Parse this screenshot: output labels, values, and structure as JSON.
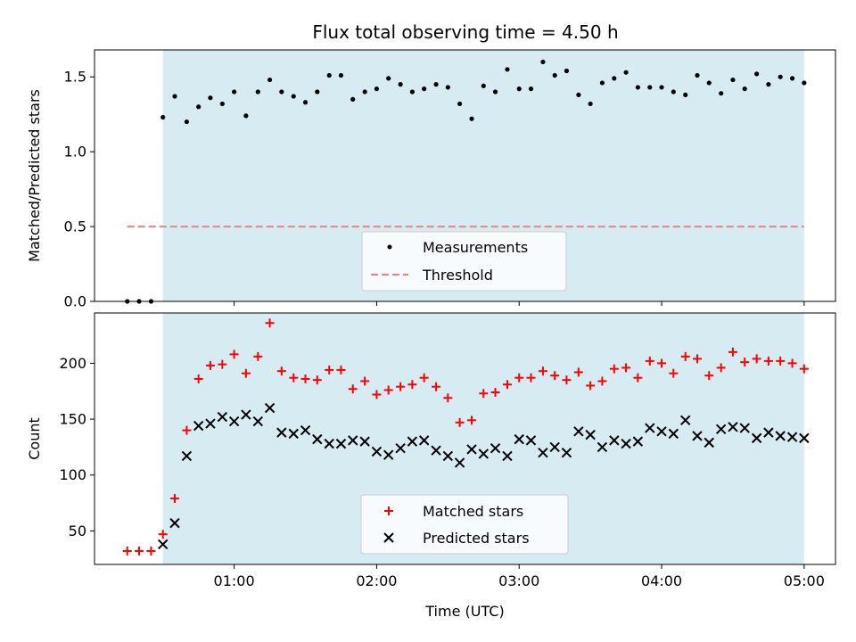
{
  "chart_data": {
    "title": "Flux total observing time = 4.50 h",
    "xlabel": "Time (UTC)",
    "x_unit": "hours (UTC)",
    "xlim": [
      0.02,
      5.22
    ],
    "xticks": [
      {
        "value": 1,
        "label": "01:00"
      },
      {
        "value": 2,
        "label": "02:00"
      },
      {
        "value": 3,
        "label": "03:00"
      },
      {
        "value": 4,
        "label": "04:00"
      },
      {
        "value": 5,
        "label": "05:00"
      }
    ],
    "observing_span": [
      0.5,
      5.0
    ],
    "colors": {
      "span": "#add8e6",
      "measurements": "#000000",
      "threshold": "#f08080",
      "matched": "#ff0000",
      "predicted": "#000000"
    },
    "panels": [
      {
        "type": "scatter",
        "ylabel": "Matched/Predicted stars",
        "ylim": [
          0.0,
          1.68
        ],
        "yticks": [
          {
            "value": 0.0,
            "label": "0.0"
          },
          {
            "value": 0.5,
            "label": "0.5"
          },
          {
            "value": 1.0,
            "label": "1.0"
          },
          {
            "value": 1.5,
            "label": "1.5"
          }
        ],
        "legend_position": "lower-center",
        "series": [
          {
            "name": "Measurements",
            "marker": "dot",
            "x": [
              0.25,
              0.333,
              0.417,
              0.5,
              0.583,
              0.667,
              0.75,
              0.833,
              0.917,
              1.0,
              1.083,
              1.167,
              1.25,
              1.333,
              1.417,
              1.5,
              1.583,
              1.667,
              1.75,
              1.833,
              1.917,
              2.0,
              2.083,
              2.167,
              2.25,
              2.333,
              2.417,
              2.5,
              2.583,
              2.667,
              2.75,
              2.833,
              2.917,
              3.0,
              3.083,
              3.167,
              3.25,
              3.333,
              3.417,
              3.5,
              3.583,
              3.667,
              3.75,
              3.833,
              3.917,
              4.0,
              4.083,
              4.167,
              4.25,
              4.333,
              4.417,
              4.5,
              4.583,
              4.667,
              4.75,
              4.833,
              4.917,
              5.0
            ],
            "y": [
              0.0,
              0.0,
              0.0,
              1.23,
              1.37,
              1.2,
              1.3,
              1.36,
              1.32,
              1.4,
              1.24,
              1.4,
              1.48,
              1.4,
              1.37,
              1.33,
              1.4,
              1.51,
              1.51,
              1.35,
              1.4,
              1.42,
              1.49,
              1.45,
              1.4,
              1.42,
              1.45,
              1.43,
              1.32,
              1.22,
              1.44,
              1.4,
              1.55,
              1.42,
              1.42,
              1.6,
              1.51,
              1.54,
              1.38,
              1.32,
              1.46,
              1.49,
              1.53,
              1.43,
              1.43,
              1.43,
              1.4,
              1.38,
              1.51,
              1.46,
              1.39,
              1.48,
              1.42,
              1.52,
              1.45,
              1.5,
              1.49,
              1.46
            ]
          },
          {
            "name": "Threshold",
            "marker": "dashed-line",
            "x": [
              0.25,
              5.0
            ],
            "y": [
              0.5,
              0.5
            ]
          }
        ]
      },
      {
        "type": "scatter",
        "ylabel": "Count",
        "ylim": [
          20,
          245
        ],
        "yticks": [
          {
            "value": 50,
            "label": "50"
          },
          {
            "value": 100,
            "label": "100"
          },
          {
            "value": 150,
            "label": "150"
          },
          {
            "value": 200,
            "label": "200"
          }
        ],
        "legend_position": "lower-center",
        "series": [
          {
            "name": "Matched stars",
            "marker": "plus",
            "x": [
              0.25,
              0.333,
              0.417,
              0.5,
              0.583,
              0.667,
              0.75,
              0.833,
              0.917,
              1.0,
              1.083,
              1.167,
              1.25,
              1.333,
              1.417,
              1.5,
              1.583,
              1.667,
              1.75,
              1.833,
              1.917,
              2.0,
              2.083,
              2.167,
              2.25,
              2.333,
              2.417,
              2.5,
              2.583,
              2.667,
              2.75,
              2.833,
              2.917,
              3.0,
              3.083,
              3.167,
              3.25,
              3.333,
              3.417,
              3.5,
              3.583,
              3.667,
              3.75,
              3.833,
              3.917,
              4.0,
              4.083,
              4.167,
              4.25,
              4.333,
              4.417,
              4.5,
              4.583,
              4.667,
              4.75,
              4.833,
              4.917,
              5.0
            ],
            "y": [
              32,
              32,
              32,
              47,
              79,
              140,
              186,
              198,
              199,
              208,
              191,
              206,
              236,
              193,
              187,
              186,
              185,
              194,
              194,
              177,
              184,
              172,
              176,
              179,
              181,
              187,
              179,
              169,
              147,
              149,
              173,
              174,
              181,
              187,
              187,
              193,
              189,
              185,
              192,
              180,
              184,
              195,
              196,
              187,
              202,
              200,
              191,
              206,
              204,
              189,
              196,
              210,
              201,
              204,
              202,
              202,
              200,
              195
            ]
          },
          {
            "name": "Predicted stars",
            "marker": "x",
            "x": [
              0.5,
              0.583,
              0.667,
              0.75,
              0.833,
              0.917,
              1.0,
              1.083,
              1.167,
              1.25,
              1.333,
              1.417,
              1.5,
              1.583,
              1.667,
              1.75,
              1.833,
              1.917,
              2.0,
              2.083,
              2.167,
              2.25,
              2.333,
              2.417,
              2.5,
              2.583,
              2.667,
              2.75,
              2.833,
              2.917,
              3.0,
              3.083,
              3.167,
              3.25,
              3.333,
              3.417,
              3.5,
              3.583,
              3.667,
              3.75,
              3.833,
              3.917,
              4.0,
              4.083,
              4.167,
              4.25,
              4.333,
              4.417,
              4.5,
              4.583,
              4.667,
              4.75,
              4.833,
              4.917,
              5.0
            ],
            "y": [
              38,
              57,
              117,
              144,
              146,
              152,
              148,
              154,
              148,
              160,
              138,
              137,
              140,
              132,
              128,
              128,
              131,
              130,
              121,
              118,
              124,
              130,
              131,
              122,
              117,
              111,
              123,
              119,
              124,
              117,
              132,
              131,
              120,
              125,
              120,
              139,
              136,
              125,
              131,
              128,
              130,
              142,
              139,
              137,
              149,
              135,
              129,
              141,
              143,
              142,
              133,
              138,
              135,
              134,
              133
            ]
          }
        ]
      }
    ]
  }
}
